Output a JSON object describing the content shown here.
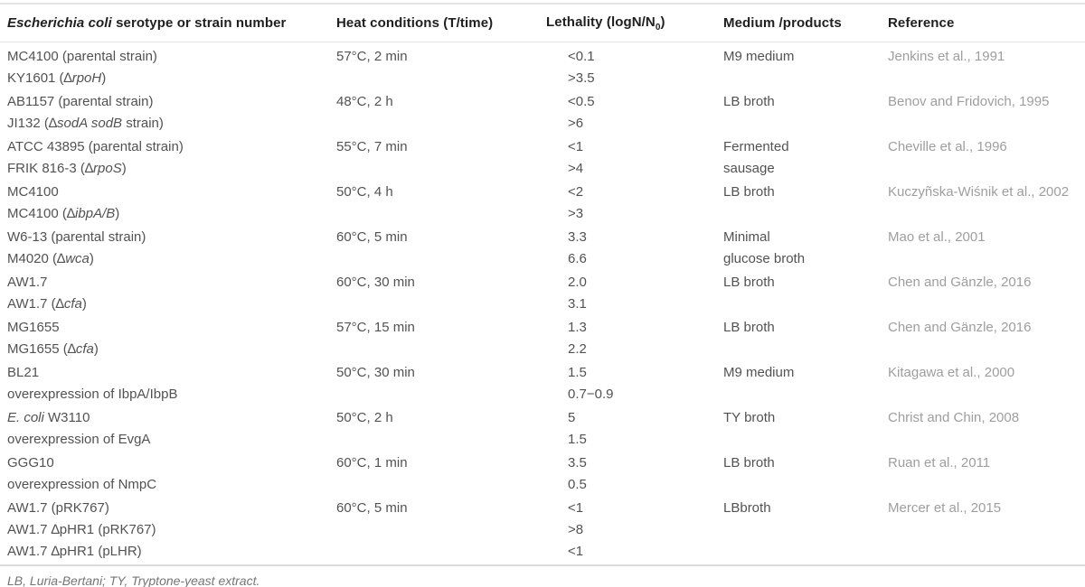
{
  "colors": {
    "header_text": "#1f1f1f",
    "body_text": "#525252",
    "reference_text": "#9e9e9e",
    "footnote_text": "#757575",
    "rule_light": "#e3e3e3",
    "rule_dark": "#dcdcdc"
  },
  "table": {
    "columns": [
      {
        "key": "strain",
        "label": "*Escherichia coli* serotype or strain number"
      },
      {
        "key": "heat",
        "label": "Heat conditions (T/time)"
      },
      {
        "key": "lethality",
        "label": "Lethality (logN/N~0~)"
      },
      {
        "key": "medium",
        "label": "Medium /products"
      },
      {
        "key": "reference",
        "label": "Reference"
      }
    ],
    "groups": [
      {
        "strains": [
          "MC4100 (parental strain)",
          "KY1601 (∆*rpoH*)"
        ],
        "heat": "57°C, 2 min",
        "lethality": [
          "<0.1",
          ">3.5"
        ],
        "medium": [
          "M9 medium"
        ],
        "reference": "Jenkins et al., 1991"
      },
      {
        "strains": [
          "AB1157 (parental strain)",
          "JI132 (∆*sodA sodB* strain)"
        ],
        "heat": "48°C, 2 h",
        "lethality": [
          "<0.5",
          ">6"
        ],
        "medium": [
          "LB broth"
        ],
        "reference": "Benov and Fridovich, 1995"
      },
      {
        "strains": [
          "ATCC 43895 (parental strain)",
          "FRIK 816-3 (∆*rpoS*)"
        ],
        "heat": "55°C, 7 min",
        "lethality": [
          "<1",
          ">4"
        ],
        "medium": [
          "Fermented",
          "sausage"
        ],
        "reference": "Cheville et al., 1996"
      },
      {
        "strains": [
          "MC4100",
          "MC4100 (∆*ibpA/B*)"
        ],
        "heat": "50°C, 4 h",
        "lethality": [
          "<2",
          ">3"
        ],
        "medium": [
          "LB broth"
        ],
        "reference": "Kuczyñska-Wiśnik et al., 2002"
      },
      {
        "strains": [
          "W6-13 (parental strain)",
          "M4020 (∆*wca*)"
        ],
        "heat": "60°C, 5 min",
        "lethality": [
          "3.3",
          "6.6"
        ],
        "medium": [
          "Minimal",
          "glucose broth"
        ],
        "reference": "Mao et al., 2001"
      },
      {
        "strains": [
          "AW1.7",
          "AW1.7 (∆*cfa*)"
        ],
        "heat": "60°C, 30 min",
        "lethality": [
          "2.0",
          "3.1"
        ],
        "medium": [
          "LB broth"
        ],
        "reference": "Chen and Gänzle, 2016"
      },
      {
        "strains": [
          "MG1655",
          "MG1655 (∆*cfa*)"
        ],
        "heat": "57°C, 15 min",
        "lethality": [
          "1.3",
          "2.2"
        ],
        "medium": [
          "LB broth"
        ],
        "reference": "Chen and Gänzle, 2016"
      },
      {
        "strains": [
          "BL21",
          "overexpression of IbpA/IbpB"
        ],
        "heat": "50°C, 30 min",
        "lethality": [
          "1.5",
          "0.7−0.9"
        ],
        "medium": [
          "M9 medium"
        ],
        "reference": "Kitagawa et al., 2000"
      },
      {
        "strains": [
          "*E. coli* W3110",
          "overexpression of EvgA"
        ],
        "heat": "50°C, 2 h",
        "lethality": [
          "5",
          "1.5"
        ],
        "medium": [
          "TY broth"
        ],
        "reference": "Christ and Chin, 2008"
      },
      {
        "strains": [
          "GGG10",
          "overexpression of NmpC"
        ],
        "heat": "60°C, 1 min",
        "lethality": [
          "3.5",
          "0.5"
        ],
        "medium": [
          "LB broth"
        ],
        "reference": "Ruan et al., 2011"
      },
      {
        "strains": [
          "AW1.7 (pRK767)",
          "AW1.7 ∆pHR1 (pRK767)",
          "AW1.7 ∆pHR1 (pLHR)"
        ],
        "heat": "60°C, 5 min",
        "lethality": [
          "<1",
          ">8",
          "<1"
        ],
        "medium": [
          "LBbroth"
        ],
        "reference": "Mercer et al., 2015"
      }
    ],
    "footnote": "LB, Luria-Bertani; TY, Tryptone-yeast extract."
  }
}
